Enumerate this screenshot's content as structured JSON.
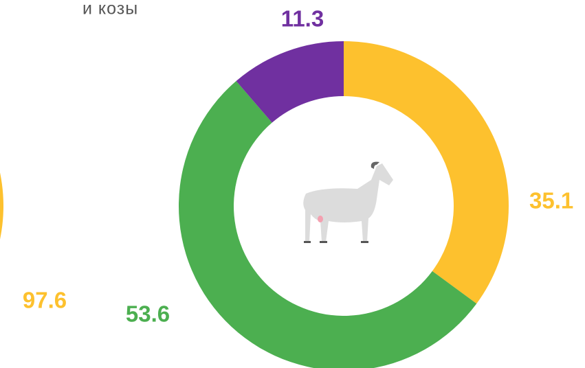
{
  "chart_data": [
    {
      "type": "donut",
      "values": [
        97.6
      ],
      "colors": [
        "#fdc12e"
      ]
    },
    {
      "type": "donut",
      "title": "и козы",
      "values": [
        35.1,
        53.6,
        11.3
      ],
      "colors": [
        "#fdc12e",
        "#4caf50",
        "#7030a0"
      ]
    }
  ]
}
